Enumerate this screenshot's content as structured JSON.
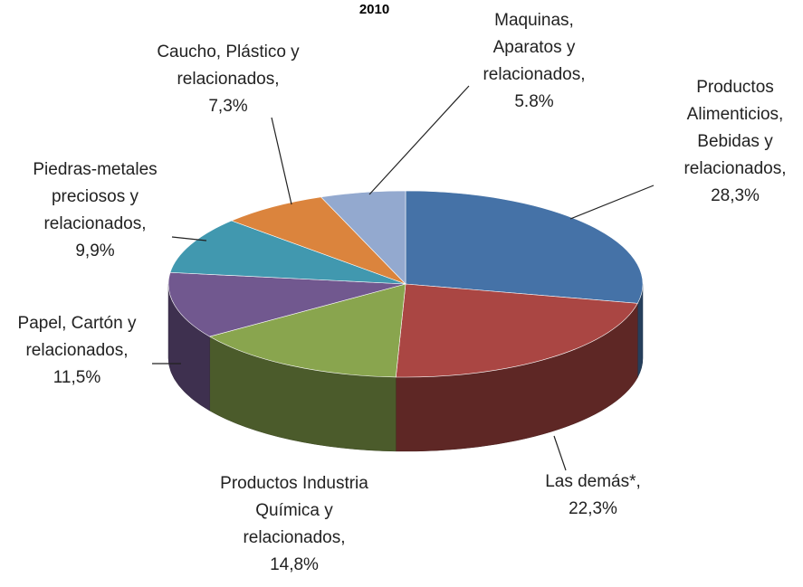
{
  "chart_data": {
    "type": "pie3d",
    "title": "2010",
    "categories": [
      "Productos Alimenticios, Bebidas y relacionados,",
      "Las demás*,",
      "Productos Industria Química y relacionados,",
      "Papel, Cartón y relacionados,",
      "Piedras-metales preciosos y relacionados,",
      "Caucho, Plástico y relacionados,",
      "Maquinas, Aparatos y relacionados,"
    ],
    "values": [
      28.3,
      22.3,
      14.8,
      11.5,
      9.9,
      7.3,
      5.8
    ],
    "value_labels": [
      "28,3%",
      "22,3%",
      "14,8%",
      "11,5%",
      "9,9%",
      "7,3%",
      "5.8%"
    ],
    "colors": [
      "#4572a7",
      "#aa4643",
      "#89a54e",
      "#71588f",
      "#4198af",
      "#db843d",
      "#93a9cf"
    ]
  }
}
